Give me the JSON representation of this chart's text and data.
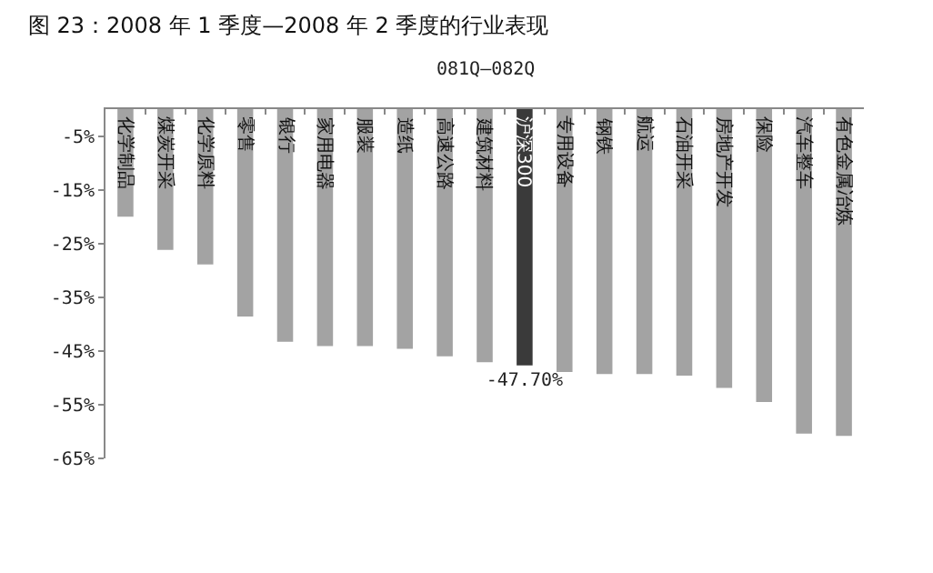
{
  "chart_data": {
    "type": "bar",
    "title": "图 23：2008 年 1 季度—2008 年 2 季度的行业表现",
    "subtitle": "081Q—082Q",
    "categories": [
      "化学制品",
      "煤炭开采",
      "化学原料",
      "零售",
      "银行",
      "家用电器",
      "服装",
      "造纸",
      "高速公路",
      "建筑材料",
      "沪深300",
      "专用设备",
      "钢铁",
      "航运",
      "石油开采",
      "房地产开发",
      "保险",
      "汽车整车",
      "有色金属冶炼"
    ],
    "values": [
      -20,
      -26.2,
      -28.9,
      -38.6,
      -43.3,
      -44.1,
      -44.1,
      -44.6,
      -46,
      -47.1,
      -47.7,
      -48.9,
      -49.3,
      -49.3,
      -49.6,
      -51.9,
      -54.5,
      -60.4,
      -60.8
    ],
    "colors": [
      "#a3a3a3",
      "#a3a3a3",
      "#a3a3a3",
      "#a3a3a3",
      "#a3a3a3",
      "#a3a3a3",
      "#a3a3a3",
      "#a3a3a3",
      "#a3a3a3",
      "#a3a3a3",
      "#3a3a3a",
      "#a3a3a3",
      "#a3a3a3",
      "#a3a3a3",
      "#a3a3a3",
      "#a3a3a3",
      "#a3a3a3",
      "#a3a3a3",
      "#a3a3a3"
    ],
    "value_labels": [
      null,
      null,
      null,
      null,
      null,
      null,
      null,
      null,
      null,
      null,
      "-47.70%",
      null,
      null,
      null,
      null,
      null,
      null,
      null,
      null
    ],
    "ylim": [
      -65,
      0
    ],
    "yticks": [
      {
        "value": -5,
        "label": "-5%"
      },
      {
        "value": -15,
        "label": "-15%"
      },
      {
        "value": -25,
        "label": "-25%"
      },
      {
        "value": -35,
        "label": "-35%"
      },
      {
        "value": -45,
        "label": "-45%"
      },
      {
        "value": -55,
        "label": "-55%"
      },
      {
        "value": -65,
        "label": "-65%"
      }
    ],
    "grid": false
  }
}
